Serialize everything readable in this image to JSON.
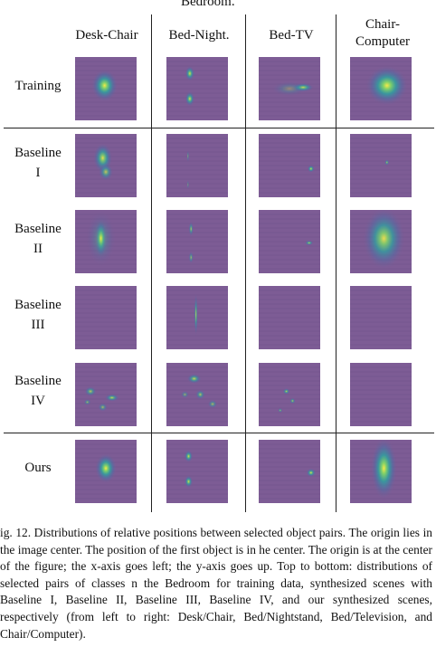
{
  "figure": {
    "supertitle": "Bedroom.",
    "columns": [
      {
        "label": "Desk-Chair"
      },
      {
        "label": "Bed-Night."
      },
      {
        "label": "Bed-TV"
      },
      {
        "label": "Chair-Computer",
        "lines": [
          "Chair-",
          "Computer"
        ]
      }
    ],
    "rows": [
      {
        "label": "Training",
        "lines": [
          "Training"
        ]
      },
      {
        "label": "Baseline I",
        "lines": [
          "Baseline",
          "I"
        ]
      },
      {
        "label": "Baseline II",
        "lines": [
          "Baseline",
          "II"
        ]
      },
      {
        "label": "Baseline III",
        "lines": [
          "Baseline",
          "III"
        ]
      },
      {
        "label": "Baseline IV",
        "lines": [
          "Baseline",
          "IV"
        ]
      },
      {
        "label": "Ours",
        "lines": [
          "Ours"
        ]
      }
    ],
    "colors": {
      "background": "#7d5c95",
      "grid_line": "#6f5187"
    }
  },
  "caption": "ig. 12.  Distributions of relative positions between selected object pairs. The origin lies in the image center. The position of the first object is in he center. The origin is at the center of the figure; the x-axis goes left; the y-axis goes up. Top to bottom: distributions of selected pairs of classes n the Bedroom for training data, synthesized scenes with Baseline I, Baseline II, Baseline III, Baseline IV, and our synthesized scenes, respectively (from left to right: Desk/Chair, Bed/Nightstand, Bed/Television, and Chair/Computer)."
}
